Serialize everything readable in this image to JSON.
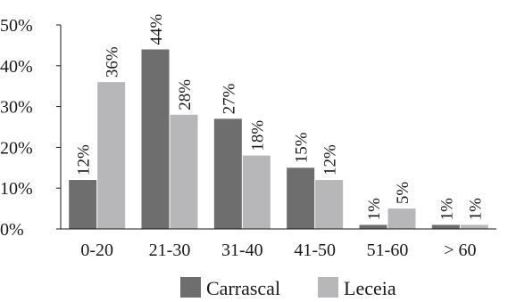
{
  "chart_data": {
    "type": "bar",
    "categories": [
      "0-20",
      "21-30",
      "31-40",
      "41-50",
      "51-60",
      "> 60"
    ],
    "series": [
      {
        "name": "Carrascal",
        "values": [
          12,
          44,
          27,
          15,
          1,
          1
        ],
        "labels": [
          "12%",
          "44%",
          "27%",
          "15%",
          "1%",
          "1%"
        ],
        "color": "#6e6e6e"
      },
      {
        "name": "Leceia",
        "values": [
          36,
          28,
          18,
          12,
          5,
          1
        ],
        "labels": [
          "36%",
          "28%",
          "18%",
          "12%",
          "5%",
          "1%"
        ],
        "color": "#b7b7b9"
      }
    ],
    "yticks": [
      "0%",
      "10%",
      "20%",
      "30%",
      "40%",
      "50%"
    ],
    "ylim": [
      0,
      50
    ],
    "title": "",
    "xlabel": "",
    "ylabel": "",
    "legend_position": "bottom",
    "grid": false
  }
}
